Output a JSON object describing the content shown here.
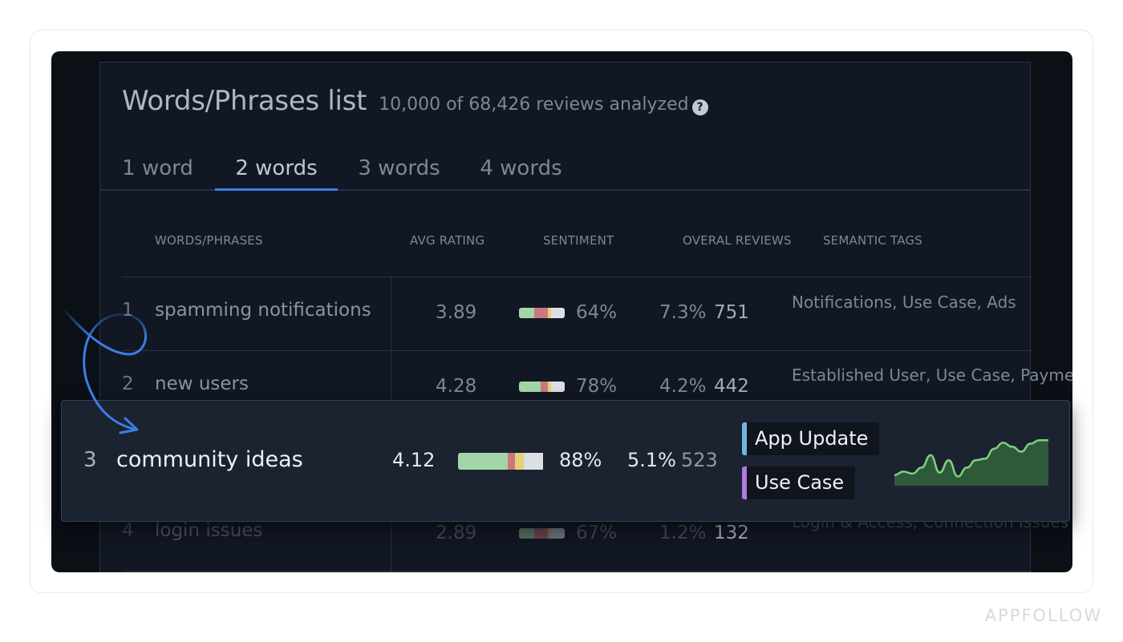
{
  "header": {
    "title": "Words/Phrases list",
    "subtitle": "10,000 of 68,426 reviews analyzed",
    "help_icon": "?"
  },
  "tabs": [
    {
      "label": "1 word",
      "active": false
    },
    {
      "label": "2 words",
      "active": true
    },
    {
      "label": "3 words",
      "active": false
    },
    {
      "label": "4 words",
      "active": false
    }
  ],
  "columns": {
    "phrases": "WORDS/PHRASES",
    "rating": "AVG RATING",
    "sentiment": "SENTIMENT",
    "reviews": "OVERAL REVIEWS",
    "tags": "SEMANTIC TAGS"
  },
  "rows": [
    {
      "num": "1",
      "phrase": "spamming notifications",
      "rating": "3.89",
      "sentiment_pct": "64%",
      "share": "7.3%",
      "count": "751",
      "tags": "Notifications, Use Case, Ads",
      "sentiment_split": [
        0.34,
        0.3,
        0.06,
        0.3
      ]
    },
    {
      "num": "2",
      "phrase": "new users",
      "rating": "4.28",
      "sentiment_pct": "78%",
      "share": "4.2%",
      "count": "442",
      "tags": "Established User, Use Case, Payment Issues",
      "sentiment_split": [
        0.48,
        0.16,
        0.06,
        0.3
      ]
    },
    {
      "num": "4",
      "phrase": "login issues",
      "rating": "2.89",
      "sentiment_pct": "67%",
      "share": "1.2%",
      "count": "132",
      "tags": "Login & Access, Connection Issues",
      "sentiment_split": [
        0.34,
        0.3,
        0.06,
        0.3
      ]
    }
  ],
  "highlight": {
    "num": "3",
    "phrase": "community ideas",
    "rating": "4.12",
    "sentiment_pct": "88%",
    "share": "5.1%",
    "count": "523",
    "sentiment_split": [
      0.55,
      0.08,
      0.1,
      0.22
    ],
    "tags": [
      "App Update",
      "Use Case"
    ],
    "tag_colors": [
      "#6fb6e0",
      "#b27be0"
    ],
    "trend": [
      0.15,
      0.22,
      0.18,
      0.3,
      0.55,
      0.2,
      0.45,
      0.12,
      0.3,
      0.45,
      0.48,
      0.68,
      0.8,
      0.72,
      0.62,
      0.78,
      0.85,
      0.85
    ]
  },
  "sentiment_colors": [
    "#a3d6a7",
    "#c9787f",
    "#e8cf7a",
    "#dcdfe3"
  ],
  "brand": "APPFOLLOW"
}
